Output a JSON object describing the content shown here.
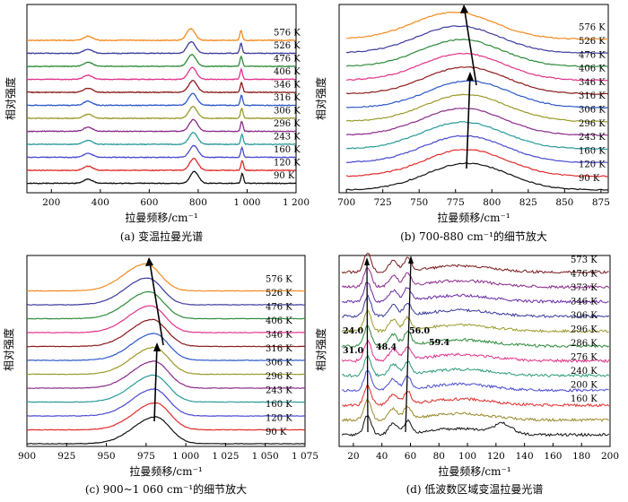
{
  "chart_data": [
    {
      "type": "line",
      "caption": "(a) 变温拉曼光谱",
      "xlabel": "拉曼频移/cm⁻¹",
      "ylabel": "相对强度",
      "xlim": [
        100,
        1200
      ],
      "xticks": [
        200,
        400,
        600,
        800,
        1000,
        1200
      ],
      "xtick_labels": [
        "200",
        "400",
        "600",
        "800",
        "1 000",
        "1 200"
      ],
      "peaks": [
        [
          350,
          0.35,
          18
        ],
        [
          770,
          1.0,
          17
        ],
        [
          975,
          0.85,
          5
        ]
      ],
      "series": [
        {
          "name": "576 K",
          "color": "#f28a1e",
          "peak_y": [
            350,
            770,
            975
          ]
        },
        {
          "name": "526 K",
          "color": "#3b3b9e",
          "peak_y": [
            350,
            772,
            975
          ]
        },
        {
          "name": "476 K",
          "color": "#2e8b3a",
          "peak_y": [
            350,
            774,
            976
          ]
        },
        {
          "name": "406 K",
          "color": "#e0338a",
          "peak_y": [
            350,
            776,
            976
          ]
        },
        {
          "name": "346 K",
          "color": "#8b1a1a",
          "peak_y": [
            350,
            778,
            977
          ]
        },
        {
          "name": "316 K",
          "color": "#2b57c8",
          "peak_y": [
            350,
            778,
            977
          ]
        },
        {
          "name": "306 K",
          "color": "#9a9a2a",
          "peak_y": [
            350,
            779,
            978
          ]
        },
        {
          "name": "296 K",
          "color": "#8a2a8a",
          "peak_y": [
            350,
            780,
            978
          ]
        },
        {
          "name": "243 K",
          "color": "#2a9a9a",
          "peak_y": [
            350,
            780,
            979
          ]
        },
        {
          "name": "160 K",
          "color": "#4a4ad0",
          "peak_y": [
            350,
            782,
            979
          ]
        },
        {
          "name": "120 K",
          "color": "#e02a2a",
          "peak_y": [
            350,
            782,
            980
          ]
        },
        {
          "name": "90 K",
          "color": "#111111",
          "peak_y": [
            350,
            784,
            980
          ]
        }
      ]
    },
    {
      "type": "line",
      "caption": "(b) 700-880 cm⁻¹的细节放大",
      "xlabel": "拉曼频移/cm⁻¹",
      "ylabel": "相对强度",
      "xlim": [
        695,
        880
      ],
      "xticks": [
        700,
        725,
        750,
        775,
        800,
        825,
        850,
        875
      ],
      "xtick_labels": [
        "700",
        "725",
        "750",
        "775",
        "800",
        "825",
        "850",
        "875"
      ],
      "peak_centers": [
        774,
        777,
        779,
        780,
        782,
        784,
        782,
        780,
        780,
        781,
        782,
        783
      ],
      "labels": [
        "576 K",
        "526 K",
        "476 K",
        "406 K",
        "346 K",
        "316 K",
        "306 K",
        "296 K",
        "243 K",
        "160 K",
        "120 K",
        "90 K"
      ]
    },
    {
      "type": "line",
      "caption": "(c) 900~1 060 cm⁻¹的细节放大",
      "xlabel": "拉曼频移/cm⁻¹",
      "ylabel": "相对强度",
      "xlim": [
        900,
        1075
      ],
      "xticks": [
        900,
        925,
        950,
        975,
        1000,
        1025,
        1050,
        1075
      ],
      "xtick_labels": [
        "900",
        "925",
        "950",
        "975",
        "1 000",
        "1 025",
        "1 050",
        "1 075"
      ],
      "peak_centers": [
        975,
        976,
        977,
        978,
        979,
        980,
        980,
        980,
        980,
        980,
        981,
        981
      ],
      "labels": [
        "576 K",
        "526 K",
        "476 K",
        "406 K",
        "346 K",
        "316 K",
        "306 K",
        "296 K",
        "243 K",
        "160 K",
        "120 K",
        "90 K"
      ]
    },
    {
      "type": "line",
      "caption": "(d) 低波数区域变温拉曼光谱",
      "xlabel": "拉曼频移/cm⁻¹",
      "ylabel": "相对强度",
      "xlim": [
        10,
        200
      ],
      "xticks": [
        20,
        40,
        60,
        80,
        100,
        120,
        140,
        160,
        180,
        200
      ],
      "xtick_labels": [
        "20",
        "40",
        "60",
        "80",
        "100",
        "120",
        "140",
        "160",
        "180",
        "200"
      ],
      "annotations": [
        "24.0",
        "31.0",
        "48.4",
        "56.0",
        "59.4"
      ],
      "labels": [
        "573 K",
        "476 K",
        "373 K",
        "346 K",
        "306 K",
        "296 K",
        "286 K",
        "276 K",
        "240 K",
        "200 K",
        "160 K"
      ]
    }
  ]
}
